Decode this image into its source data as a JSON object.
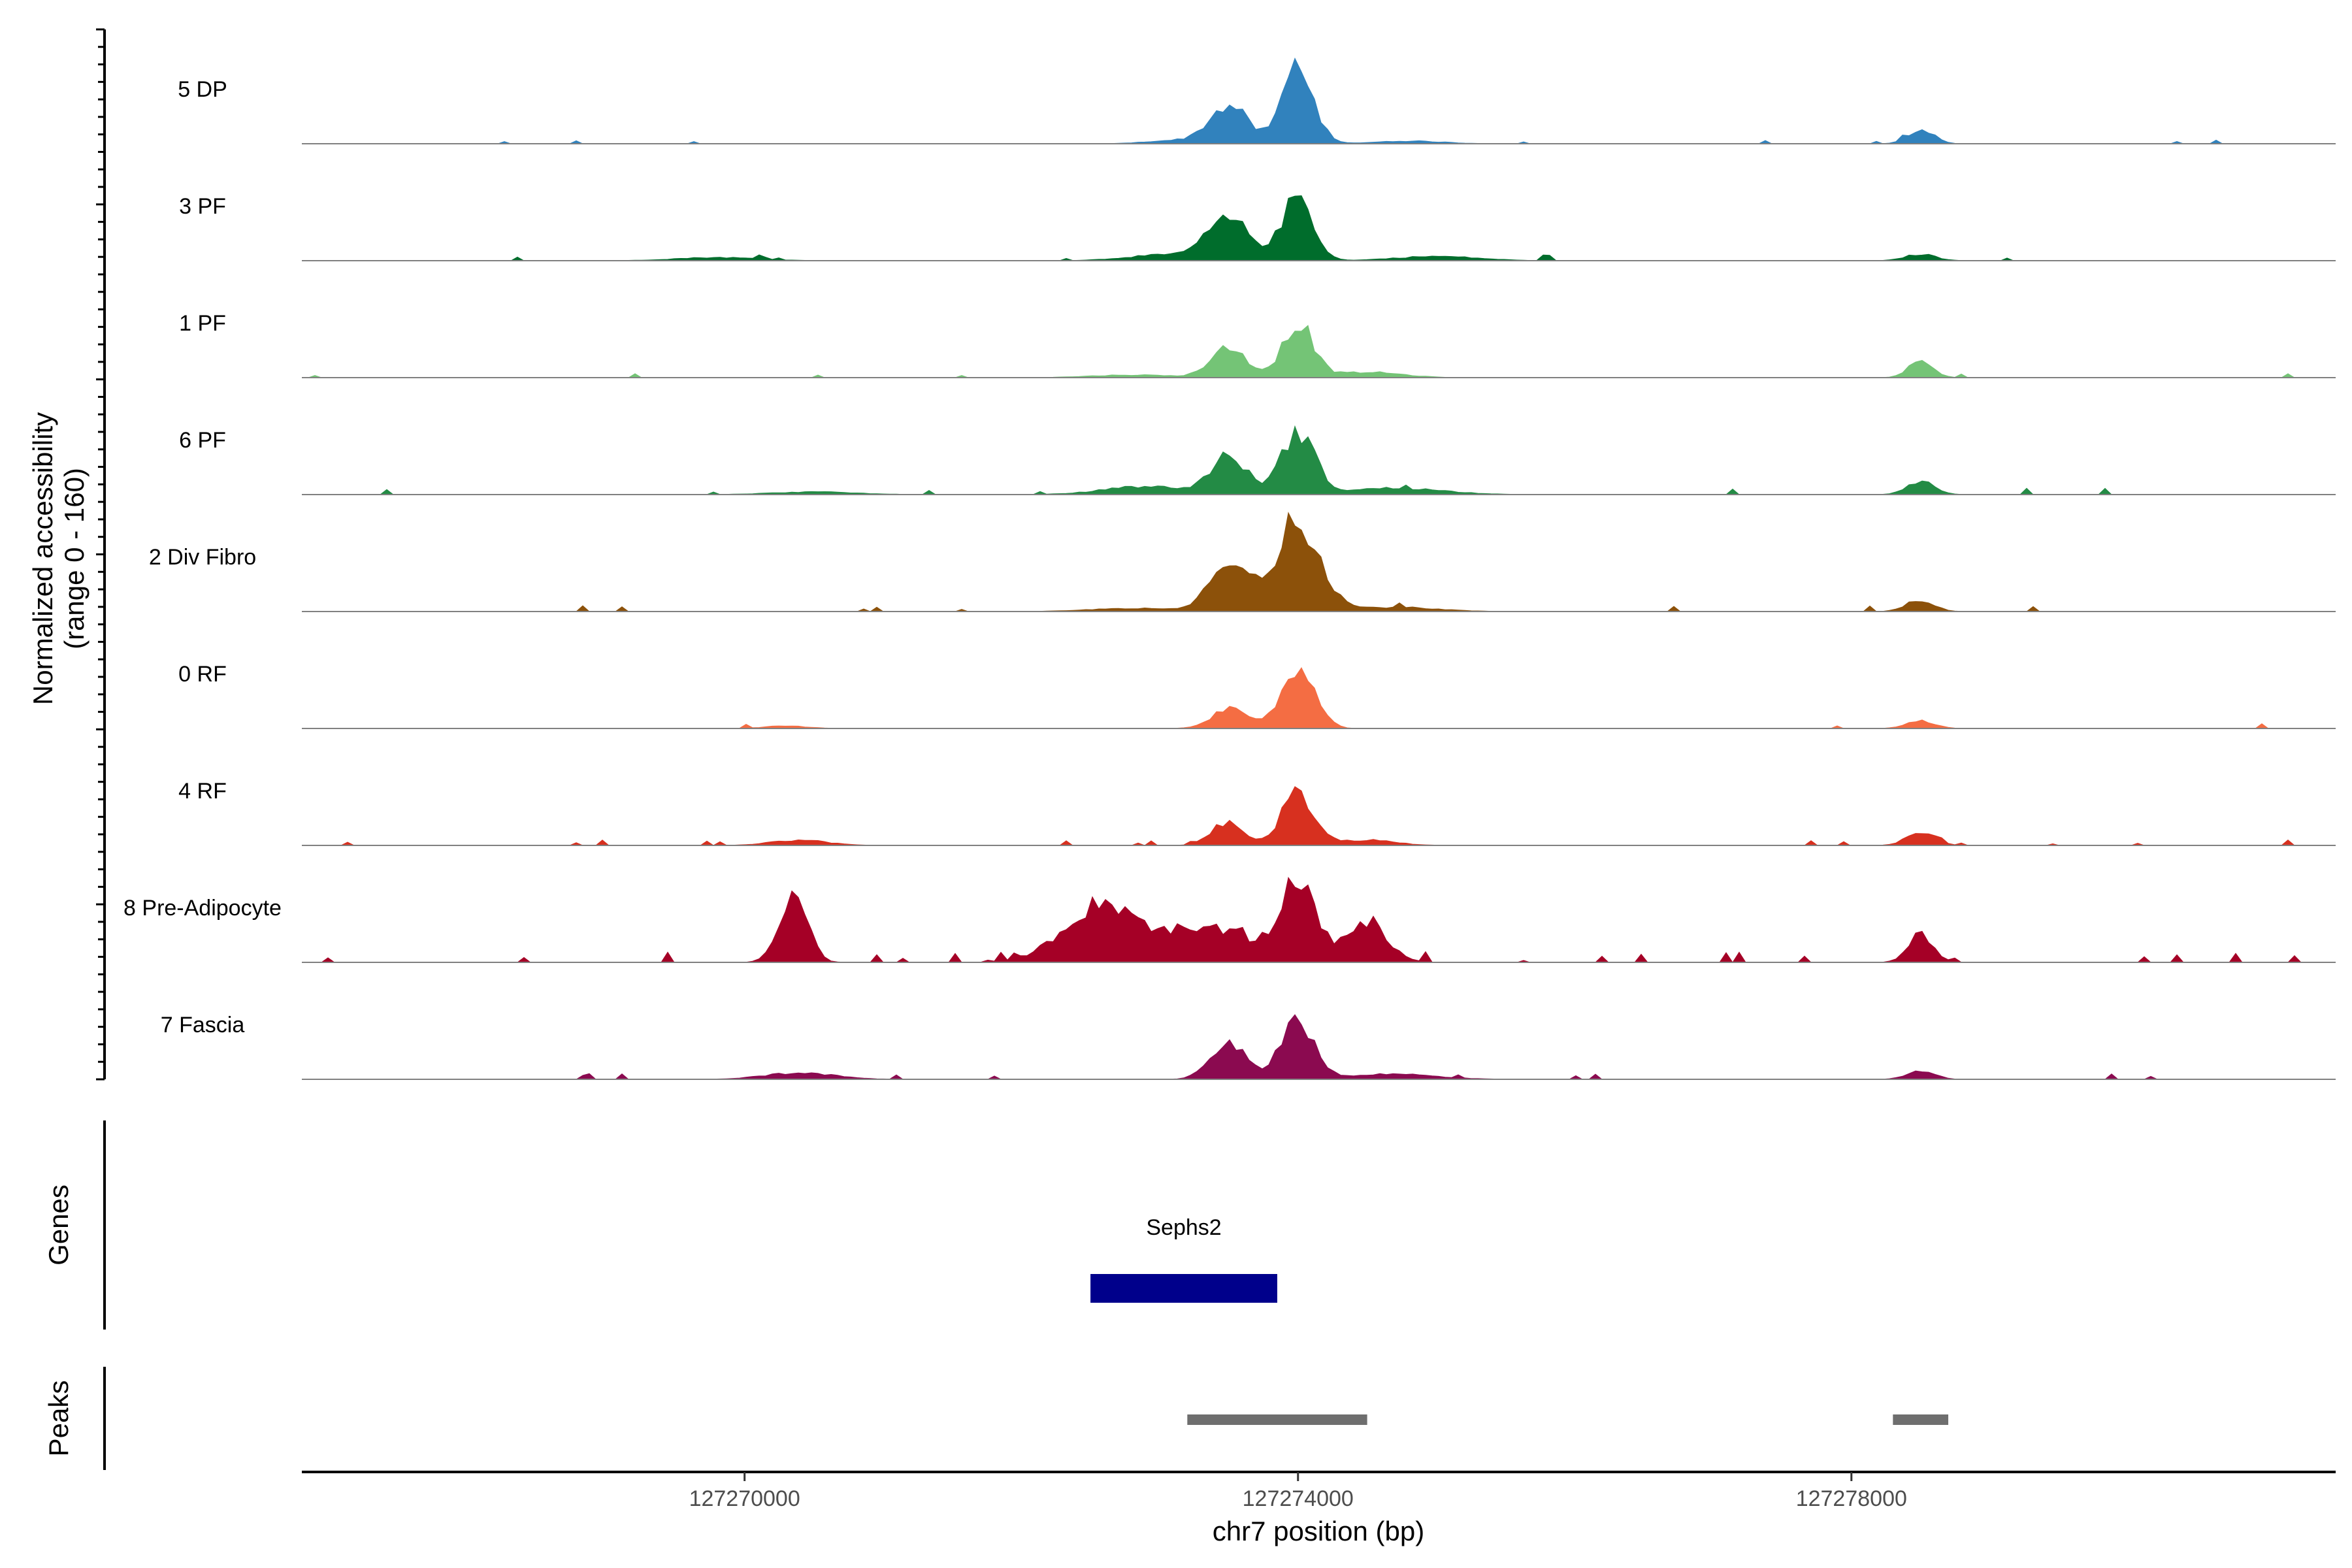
{
  "chart_data": {
    "type": "area",
    "title": "",
    "ylabel_lines": [
      "Normalized accessibility",
      "(range 0 - 160)"
    ],
    "y_range": [
      0,
      160
    ],
    "xlabel": "chr7 position (bp)",
    "xlim": [
      127266800,
      127281500
    ],
    "x_ticks": [
      127270000,
      127274000,
      127278000
    ],
    "x_tick_labels": [
      "127270000",
      "127274000",
      "127278000"
    ],
    "tracks": [
      {
        "name": "5 DP",
        "color": "#3182bd",
        "peaks": [
          [
            127273500,
            70,
            140
          ],
          [
            127274000,
            150,
            110
          ],
          [
            127278500,
            28,
            90
          ],
          [
            127273100,
            6,
            200
          ],
          [
            127274800,
            5,
            250
          ]
        ],
        "noise": 2
      },
      {
        "name": "3 PF",
        "color": "#006d2c",
        "peaks": [
          [
            127273500,
            75,
            160
          ],
          [
            127274000,
            120,
            110
          ],
          [
            127278500,
            12,
            110
          ],
          [
            127269800,
            6,
            300
          ],
          [
            127275000,
            8,
            300
          ],
          [
            127273000,
            10,
            260
          ]
        ],
        "noise": 4
      },
      {
        "name": "1 PF",
        "color": "#74c476",
        "peaks": [
          [
            127273500,
            55,
            130
          ],
          [
            127274000,
            100,
            110
          ],
          [
            127278500,
            30,
            90
          ],
          [
            127274500,
            10,
            250
          ],
          [
            127272800,
            5,
            300
          ]
        ],
        "noise": 3
      },
      {
        "name": "6 PF",
        "color": "#238b45",
        "peaks": [
          [
            127273500,
            70,
            130
          ],
          [
            127274000,
            115,
            120
          ],
          [
            127278500,
            25,
            100
          ],
          [
            127272900,
            15,
            300
          ],
          [
            127274700,
            12,
            350
          ],
          [
            127270500,
            5,
            300
          ]
        ],
        "noise": 5
      },
      {
        "name": "2 Div Fibro",
        "color": "#8c510a",
        "peaks": [
          [
            127273500,
            85,
            140
          ],
          [
            127274000,
            165,
            160
          ],
          [
            127278500,
            22,
            100
          ],
          [
            127274700,
            8,
            300
          ],
          [
            127272800,
            6,
            300
          ]
        ],
        "noise": 4
      },
      {
        "name": "0 RF",
        "color": "#f46d43",
        "peaks": [
          [
            127273500,
            35,
            130
          ],
          [
            127274000,
            110,
            120
          ],
          [
            127278500,
            14,
            100
          ],
          [
            127270300,
            5,
            150
          ]
        ],
        "noise": 3
      },
      {
        "name": "4 RF",
        "color": "#d7301f",
        "peaks": [
          [
            127273500,
            40,
            120
          ],
          [
            127274000,
            95,
            120
          ],
          [
            127278500,
            25,
            100
          ],
          [
            127270400,
            10,
            200
          ],
          [
            127274500,
            10,
            200
          ]
        ],
        "noise": 4
      },
      {
        "name": "8 Pre-Adipocyte",
        "color": "#a50026",
        "peaks": [
          [
            127270350,
            130,
            100
          ],
          [
            127272600,
            110,
            280
          ],
          [
            127273400,
            60,
            280
          ],
          [
            127274000,
            150,
            130
          ],
          [
            127274500,
            70,
            150
          ],
          [
            127278500,
            55,
            90
          ]
        ],
        "noise": 8
      },
      {
        "name": "7 Fascia",
        "color": "#8b0a50",
        "peaks": [
          [
            127273500,
            70,
            130
          ],
          [
            127274000,
            110,
            120
          ],
          [
            127278500,
            16,
            100
          ],
          [
            127270400,
            12,
            250
          ],
          [
            127274700,
            10,
            300
          ]
        ],
        "noise": 4
      }
    ],
    "genes": [
      {
        "name": "Sephs2",
        "start": 127272500,
        "end": 127273850,
        "color": "#00008b"
      }
    ],
    "peaks_track": [
      {
        "start": 127273200,
        "end": 127274500
      },
      {
        "start": 127278300,
        "end": 127278700
      }
    ],
    "panel_titles": {
      "genes": "Genes",
      "peaks": "Peaks"
    }
  }
}
